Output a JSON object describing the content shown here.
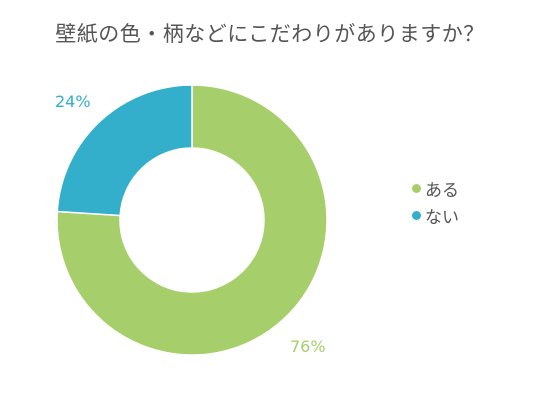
{
  "chart_data": {
    "type": "pie",
    "variant": "donut",
    "title": "壁紙の色・柄などにこだわりがありますか？",
    "categories": [
      "ある",
      "ない"
    ],
    "values": [
      76,
      24
    ],
    "value_labels": [
      "76%",
      "24%"
    ],
    "colors": [
      "#a6cf6c",
      "#33aecb"
    ],
    "legend_position": "right"
  }
}
